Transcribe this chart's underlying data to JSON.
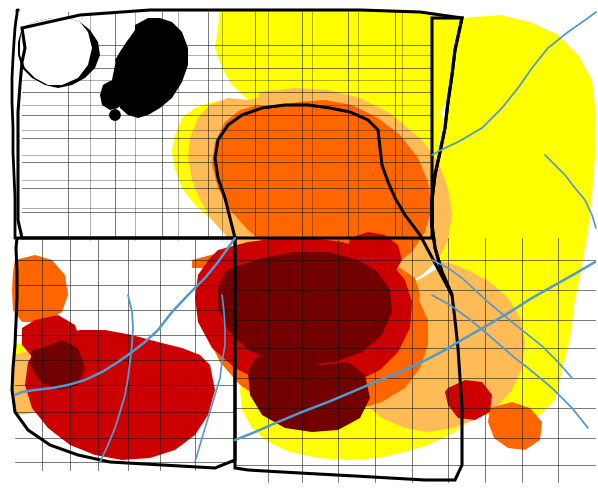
{
  "figsize": [
    5.98,
    4.94
  ],
  "dpi": 100,
  "background_color": "#ffffff",
  "colors": {
    "D4": "#730000",
    "D3": "#CC0000",
    "D2": "#FF6600",
    "D1": "#FFBB55",
    "D0": "#FFFF00",
    "none": "#ffffff",
    "water": "#5599CC",
    "state_border": "#000000",
    "county_border": "#222222"
  }
}
